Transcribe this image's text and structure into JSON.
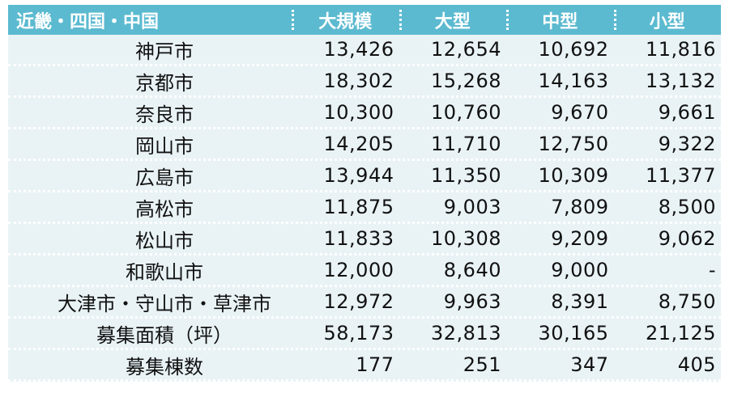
{
  "table": {
    "headers": [
      "近畿・四国・中国",
      "大規模",
      "大型",
      "中型",
      "小型"
    ],
    "rows": [
      {
        "label": "神戸市",
        "values": [
          "13,426",
          "12,654",
          "10,692",
          "11,816"
        ]
      },
      {
        "label": "京都市",
        "values": [
          "18,302",
          "15,268",
          "14,163",
          "13,132"
        ]
      },
      {
        "label": "奈良市",
        "values": [
          "10,300",
          "10,760",
          "9,670",
          "9,661"
        ]
      },
      {
        "label": "岡山市",
        "values": [
          "14,205",
          "11,710",
          "12,750",
          "9,322"
        ]
      },
      {
        "label": "広島市",
        "values": [
          "13,944",
          "11,350",
          "10,309",
          "11,377"
        ]
      },
      {
        "label": "高松市",
        "values": [
          "11,875",
          "9,003",
          "7,809",
          "8,500"
        ]
      },
      {
        "label": "松山市",
        "values": [
          "11,833",
          "10,308",
          "9,209",
          "9,062"
        ]
      },
      {
        "label": "和歌山市",
        "values": [
          "12,000",
          "8,640",
          "9,000",
          "-"
        ]
      },
      {
        "label": "大津市・守山市・草津市",
        "values": [
          "12,972",
          "9,963",
          "8,391",
          "8,750"
        ]
      },
      {
        "label": "募集面積（坪）",
        "values": [
          "58,173",
          "32,813",
          "30,165",
          "21,125"
        ]
      },
      {
        "label": "募集棟数",
        "values": [
          "177",
          "251",
          "347",
          "405"
        ]
      }
    ]
  },
  "colors": {
    "header_bg": "#5bbad0",
    "row_bg": "#e9f3f6",
    "header_text": "#ffffff",
    "body_text": "#111111"
  }
}
